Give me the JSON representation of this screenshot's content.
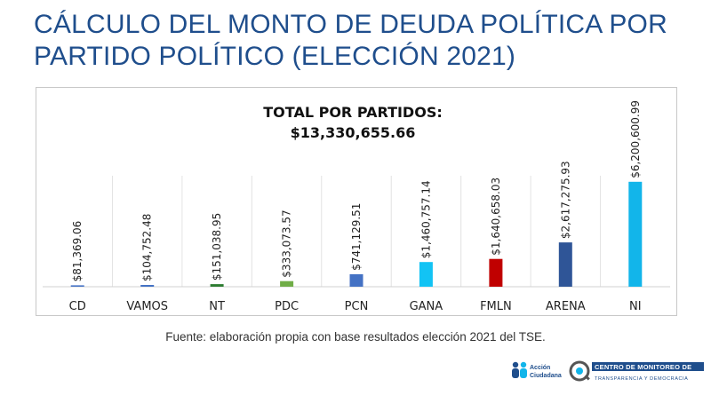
{
  "page": {
    "title": "CÁLCULO DEL MONTO DE DEUDA POLÍTICA POR PARTIDO POLÍTICO (ELECCIÓN 2021)",
    "source": "Fuente: elaboración propia con base resultados elección 2021 del TSE."
  },
  "logos": {
    "accion_ciudadana": "Acción Ciudadana",
    "centro_monitoreo": "CENTRO DE MONITOREO DE TRANSPARENCIA Y DEMOCRACIA"
  },
  "chart_data": {
    "type": "bar",
    "annotation_title": "TOTAL POR PARTIDOS:",
    "annotation_total": "$13,330,655.66",
    "xlabel": "",
    "ylabel": "",
    "ylim": [
      0,
      6400000
    ],
    "grid": "vertical separators",
    "legend": "none",
    "categories": [
      "CD",
      "VAMOS",
      "NT",
      "PDC",
      "PCN",
      "GANA",
      "FMLN",
      "ARENA",
      "NI"
    ],
    "values": [
      81369.06,
      104752.48,
      151038.95,
      333073.57,
      741129.51,
      1460757.14,
      1640658.03,
      2617275.93,
      6200600.99
    ],
    "value_labels": [
      "$81,369.06",
      "$104,752.48",
      "$151,038.95",
      "$333,073.57",
      "$741,129.51",
      "$1,460,757.14",
      "$1,640,658.03",
      "$2,617,275.93",
      "$6,200,600.99"
    ],
    "colors": [
      "#4472C4",
      "#4472C4",
      "#2E7D32",
      "#70AD47",
      "#4472C4",
      "#12C3F4",
      "#C00000",
      "#2F5597",
      "#12B5EA"
    ]
  }
}
